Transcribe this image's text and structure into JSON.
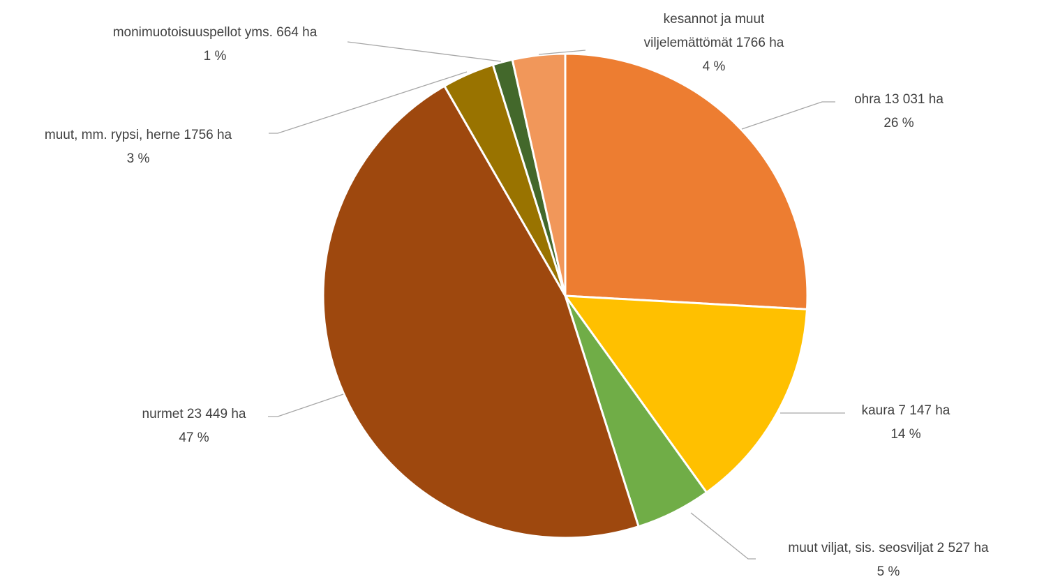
{
  "chart_data": {
    "type": "pie",
    "title": "",
    "unit": "ha",
    "slices": [
      {
        "label": [
          "ohra 13 031 ha",
          "26 %"
        ],
        "category": "ohra",
        "value": 13031,
        "percent": 26,
        "color": "#ED7D31"
      },
      {
        "label": [
          "kaura 7 147 ha",
          "14 %"
        ],
        "category": "kaura",
        "value": 7147,
        "percent": 14,
        "color": "#FFC000"
      },
      {
        "label": [
          "muut viljat, sis. seosviljat 2 527 ha",
          "5 %"
        ],
        "category": "muut viljat, sis. seosviljat",
        "value": 2527,
        "percent": 5,
        "color": "#70AD47"
      },
      {
        "label": [
          "nurmet 23 449 ha",
          "47 %"
        ],
        "category": "nurmet",
        "value": 23449,
        "percent": 47,
        "color": "#9E480E"
      },
      {
        "label": [
          "muut, mm. rypsi, herne 1756 ha",
          "3 %"
        ],
        "category": "muut, mm. rypsi, herne",
        "value": 1756,
        "percent": 3,
        "color": "#997300"
      },
      {
        "label": [
          "monimuotoisuuspellot yms. 664 ha",
          "1 %"
        ],
        "category": "monimuotoisuuspellot yms.",
        "value": 664,
        "percent": 1,
        "color": "#43682B"
      },
      {
        "label": [
          "kesannot ja muut",
          "viljelemättömät 1766 ha",
          "4 %"
        ],
        "category": "kesannot ja muut viljelemättömät",
        "value": 1766,
        "percent": 4,
        "color": "#F1975A"
      }
    ],
    "legend": "none",
    "leader_line_color": "#A6A6A6"
  }
}
